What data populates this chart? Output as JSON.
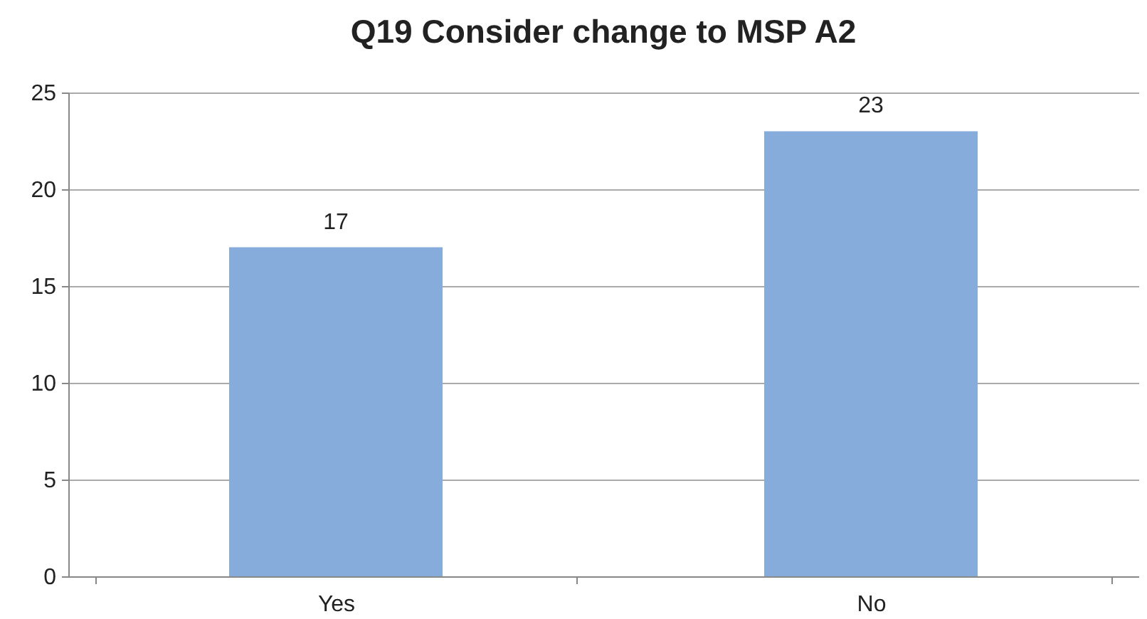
{
  "chart_data": {
    "type": "bar",
    "title": "Q19 Consider change to MSP A2",
    "categories": [
      "Yes",
      "No"
    ],
    "values": [
      17,
      23
    ],
    "color": "#86acdc",
    "ylim": [
      0,
      25
    ],
    "yticks": [
      0,
      5,
      10,
      15,
      20,
      25
    ],
    "grid": "y",
    "data_labels": true
  }
}
